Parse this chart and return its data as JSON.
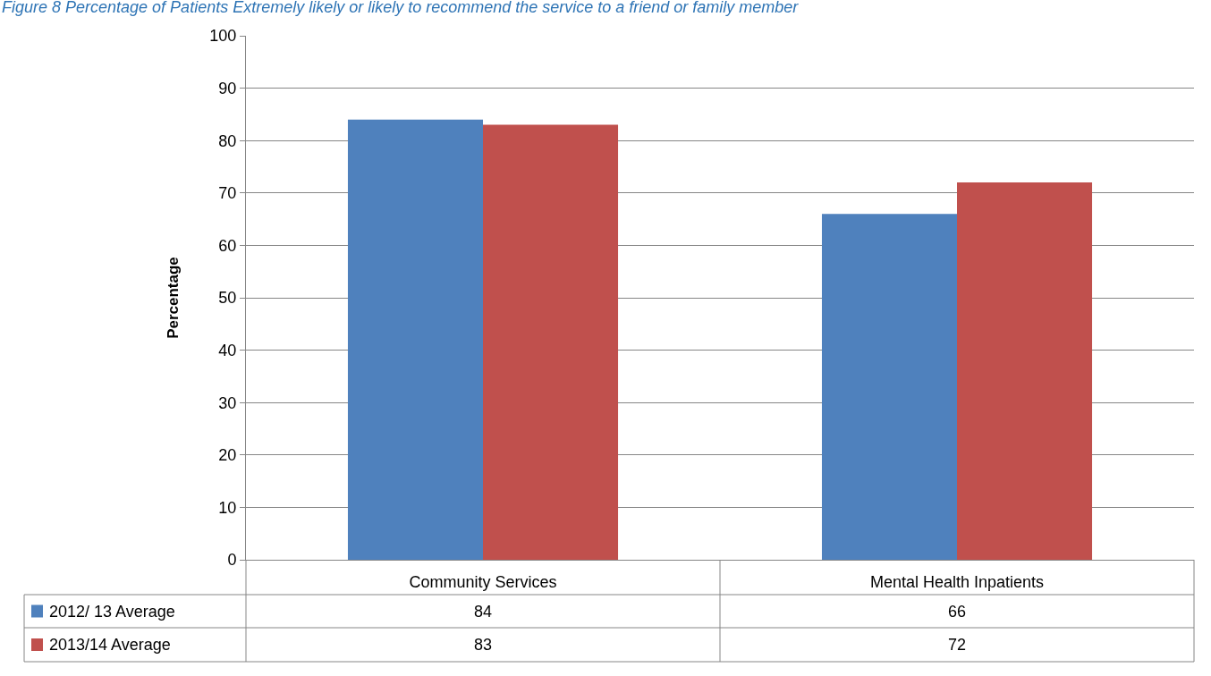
{
  "chart_data": {
    "type": "bar",
    "title": "Figure 8 Percentage of Patients Extremely likely or likely to recommend the service to a friend or family member",
    "ylabel": "Percentage",
    "categories": [
      "Community Services",
      "Mental Health Inpatients"
    ],
    "series": [
      {
        "name": "2012/ 13 Average",
        "color": "#4f81bd",
        "values": [
          84,
          66
        ]
      },
      {
        "name": "2013/14 Average",
        "color": "#c0504d",
        "values": [
          83,
          72
        ]
      }
    ],
    "ylim": [
      0,
      100
    ],
    "yticks": [
      0,
      10,
      20,
      30,
      40,
      50,
      60,
      70,
      80,
      90,
      100
    ],
    "grid": "y",
    "data_labels": true,
    "legend": "bottom left"
  }
}
